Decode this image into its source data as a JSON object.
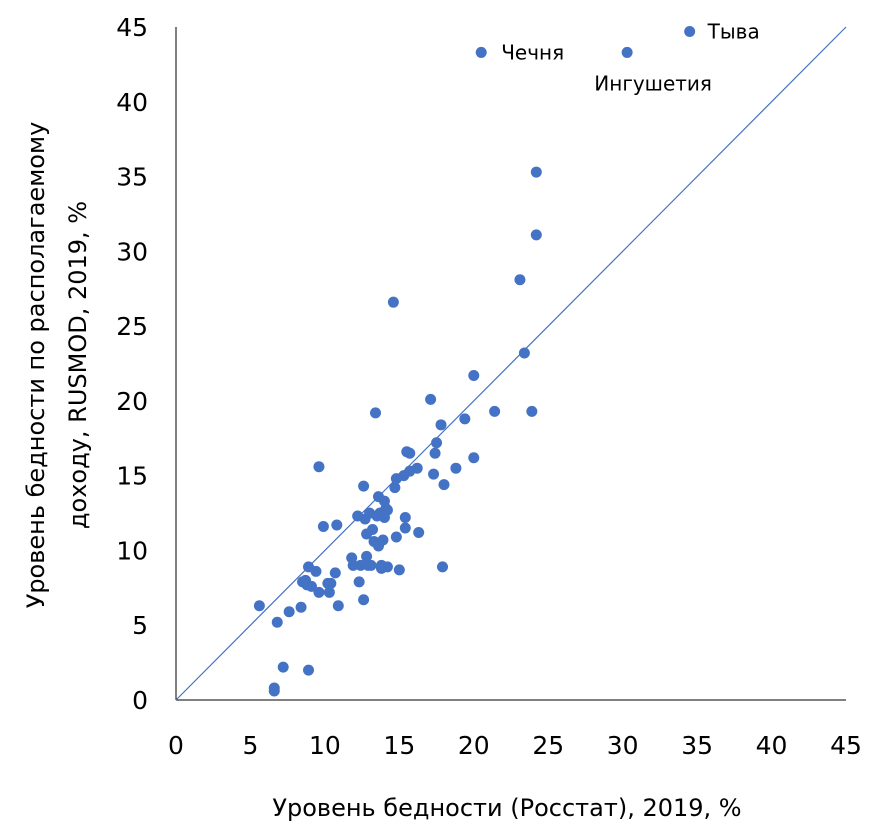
{
  "chart_data": {
    "type": "scatter",
    "title": "",
    "xlabel": "Уровень бедности (Росстат), 2019, %",
    "ylabel_line1": "Уровень бедности по располагаемому",
    "ylabel_line2": "доходу, RUSMOD, 2019, %",
    "xlim": [
      0,
      45
    ],
    "ylim": [
      0,
      45
    ],
    "xticks": [
      0,
      5,
      10,
      15,
      20,
      25,
      30,
      35,
      40,
      45
    ],
    "yticks": [
      0,
      5,
      10,
      15,
      20,
      25,
      30,
      35,
      40,
      45
    ],
    "grid": false,
    "reference_line": {
      "from": [
        0,
        0
      ],
      "to": [
        45,
        45
      ],
      "color": "#4472C4"
    },
    "point_color": "#4472C4",
    "labeled_points": [
      {
        "label": "Тыва",
        "x": 34.5,
        "y": 44.7
      },
      {
        "label": "Чечня",
        "x": 20.5,
        "y": 43.3
      },
      {
        "label": "Ингушетия",
        "x": 30.3,
        "y": 43.3
      }
    ],
    "points": [
      [
        5.6,
        6.3
      ],
      [
        6.6,
        0.6
      ],
      [
        6.6,
        0.8
      ],
      [
        6.8,
        5.2
      ],
      [
        7.2,
        2.2
      ],
      [
        7.6,
        5.9
      ],
      [
        8.4,
        6.2
      ],
      [
        8.5,
        7.9
      ],
      [
        8.7,
        8.0
      ],
      [
        8.8,
        7.7
      ],
      [
        8.9,
        2.0
      ],
      [
        8.9,
        8.9
      ],
      [
        9.1,
        7.6
      ],
      [
        9.4,
        8.6
      ],
      [
        9.6,
        7.2
      ],
      [
        9.6,
        15.6
      ],
      [
        9.9,
        11.6
      ],
      [
        10.2,
        7.8
      ],
      [
        10.3,
        7.2
      ],
      [
        10.4,
        7.8
      ],
      [
        10.7,
        8.5
      ],
      [
        10.8,
        11.7
      ],
      [
        10.9,
        6.3
      ],
      [
        11.8,
        9.5
      ],
      [
        11.9,
        9.0
      ],
      [
        12.2,
        12.3
      ],
      [
        12.3,
        7.9
      ],
      [
        12.4,
        9.0
      ],
      [
        12.6,
        6.7
      ],
      [
        12.6,
        14.3
      ],
      [
        12.7,
        12.1
      ],
      [
        12.8,
        9.6
      ],
      [
        12.8,
        11.1
      ],
      [
        12.9,
        9.0
      ],
      [
        13.0,
        12.5
      ],
      [
        13.1,
        9.0
      ],
      [
        13.2,
        11.4
      ],
      [
        13.3,
        10.6
      ],
      [
        13.4,
        19.2
      ],
      [
        13.5,
        12.3
      ],
      [
        13.6,
        10.3
      ],
      [
        13.6,
        13.6
      ],
      [
        13.7,
        12.5
      ],
      [
        13.8,
        8.8
      ],
      [
        13.8,
        9.0
      ],
      [
        13.9,
        10.7
      ],
      [
        14.0,
        12.2
      ],
      [
        14.0,
        13.3
      ],
      [
        14.1,
        12.8
      ],
      [
        14.2,
        8.9
      ],
      [
        14.2,
        12.7
      ],
      [
        14.6,
        26.6
      ],
      [
        14.7,
        14.2
      ],
      [
        14.8,
        14.8
      ],
      [
        14.8,
        10.9
      ],
      [
        15.0,
        8.7
      ],
      [
        15.3,
        15.0
      ],
      [
        15.4,
        11.5
      ],
      [
        15.4,
        12.2
      ],
      [
        15.5,
        16.6
      ],
      [
        15.7,
        15.3
      ],
      [
        15.7,
        16.5
      ],
      [
        16.2,
        15.5
      ],
      [
        16.3,
        11.2
      ],
      [
        17.1,
        20.1
      ],
      [
        17.3,
        15.1
      ],
      [
        17.4,
        16.5
      ],
      [
        17.5,
        17.2
      ],
      [
        17.8,
        18.4
      ],
      [
        17.9,
        8.9
      ],
      [
        18.0,
        14.4
      ],
      [
        18.8,
        15.5
      ],
      [
        19.4,
        18.8
      ],
      [
        20.0,
        21.7
      ],
      [
        20.0,
        16.2
      ],
      [
        21.4,
        19.3
      ],
      [
        23.1,
        28.1
      ],
      [
        23.4,
        23.2
      ],
      [
        23.9,
        19.3
      ],
      [
        24.2,
        31.1
      ],
      [
        24.2,
        35.3
      ]
    ]
  }
}
